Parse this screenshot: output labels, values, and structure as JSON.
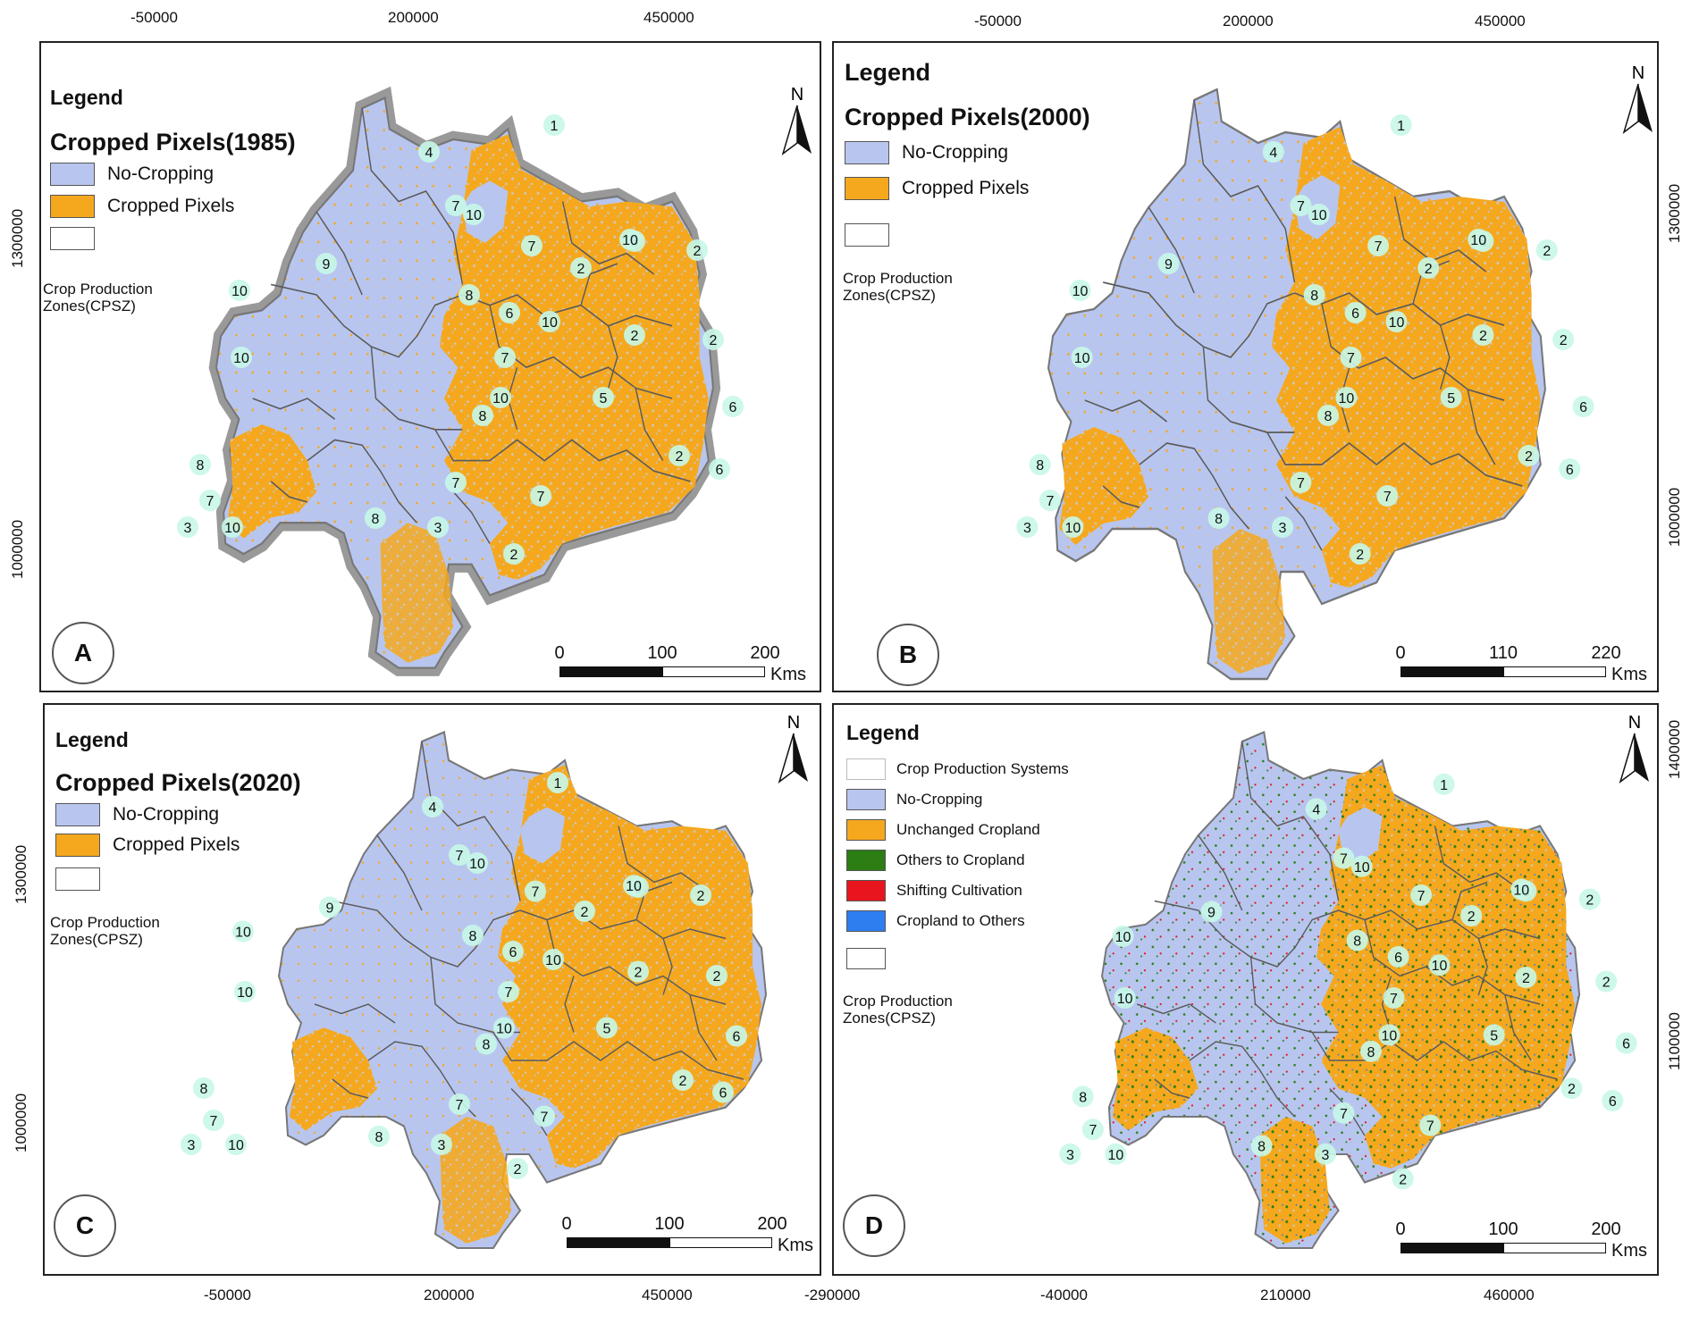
{
  "colors": {
    "no_cropping": "#b8c6ef",
    "cropped": "#f5a81e",
    "boundary": "#666666",
    "others_to_cropland": "#2c7d14",
    "shifting_cultivation": "#e8141e",
    "cropland_to_others": "#2f7ef0",
    "zone_label_bg": "#c8f7e8"
  },
  "panels": [
    {
      "id": "A",
      "letter": "A",
      "legend_label": "Legend",
      "heading": "Cropped Pixels(1985)",
      "items": [
        {
          "label": "No-Cropping",
          "color": "#b8c6ef"
        },
        {
          "label": "Cropped Pixels",
          "color": "#f5a81e"
        },
        {
          "label": "",
          "color": "#ffffff"
        }
      ],
      "zone_caption": [
        "Crop Production",
        "Zones(CPSZ)"
      ],
      "scale": {
        "ticks": [
          "0",
          "100",
          "200"
        ],
        "unit": "Kms"
      },
      "north": "N",
      "top_ticks": [
        "-50000",
        "200000",
        "450000"
      ],
      "left_ticks": [
        "1300000",
        "1000000"
      ]
    },
    {
      "id": "B",
      "letter": "B",
      "legend_label": "Legend",
      "heading": "Cropped Pixels(2000)",
      "items": [
        {
          "label": "No-Cropping",
          "color": "#b8c6ef"
        },
        {
          "label": "Cropped Pixels",
          "color": "#f5a81e"
        },
        {
          "label": "",
          "color": "#ffffff"
        }
      ],
      "zone_caption": [
        "Crop Production",
        "Zones(CPSZ)"
      ],
      "scale": {
        "ticks": [
          "0",
          "110",
          "220"
        ],
        "unit": "Kms"
      },
      "north": "N",
      "top_ticks": [
        "-50000",
        "200000",
        "450000"
      ],
      "right_ticks": [
        "1300000",
        "1000000"
      ]
    },
    {
      "id": "C",
      "letter": "C",
      "legend_label": "Legend",
      "heading": "Cropped Pixels(2020)",
      "items": [
        {
          "label": "No-Cropping",
          "color": "#b8c6ef"
        },
        {
          "label": "Cropped Pixels",
          "color": "#f5a81e"
        },
        {
          "label": "",
          "color": "#ffffff"
        }
      ],
      "zone_caption": [
        "Crop Production",
        "Zones(CPSZ)"
      ],
      "scale": {
        "ticks": [
          "0",
          "100",
          "200"
        ],
        "unit": "Kms"
      },
      "north": "N",
      "bottom_ticks": [
        "-50000",
        "200000",
        "450000"
      ],
      "left_ticks": [
        "1300000",
        "1000000"
      ]
    },
    {
      "id": "D",
      "letter": "D",
      "legend_label": "Legend",
      "heading": "",
      "items": [
        {
          "label": "Crop Production Systems",
          "color": "#ffffff"
        },
        {
          "label": "No-Cropping",
          "color": "#b8c6ef"
        },
        {
          "label": "Unchanged Cropland",
          "color": "#f5a81e"
        },
        {
          "label": "Others to Cropland",
          "color": "#2c7d14"
        },
        {
          "label": "Shifting Cultivation",
          "color": "#e8141e"
        },
        {
          "label": "Cropland to Others",
          "color": "#2f7ef0"
        },
        {
          "label": "",
          "color": "#ffffff"
        }
      ],
      "zone_caption": [
        "Crop Production",
        "Zones(CPSZ)"
      ],
      "scale": {
        "ticks": [
          "0",
          "100",
          "200"
        ],
        "unit": "Kms"
      },
      "north": "N",
      "bottom_ticks": [
        "-290000",
        "-40000",
        "210000",
        "460000"
      ],
      "right_ticks": [
        "1400000",
        "1100000"
      ]
    }
  ],
  "zones": [
    "1",
    "2",
    "2",
    "2",
    "2",
    "2",
    "2",
    "3",
    "3",
    "4",
    "5",
    "6",
    "6",
    "6",
    "6",
    "7",
    "7",
    "7",
    "7",
    "7",
    "7",
    "8",
    "8",
    "8",
    "8",
    "9",
    "10",
    "10",
    "10",
    "10",
    "10",
    "10",
    "10"
  ]
}
